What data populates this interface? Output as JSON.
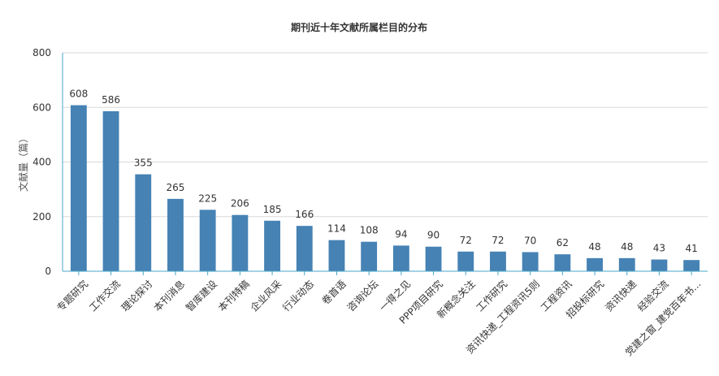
{
  "chart_data": {
    "type": "bar",
    "title": "期刊近十年文献所属栏目的分布",
    "ylabel": "文献量（篇）",
    "xlabel": "",
    "ylim": [
      0,
      800
    ],
    "yticks": [
      0,
      200,
      400,
      600,
      800
    ],
    "grid": true,
    "colors": {
      "bar": "#4682b4",
      "axis": "#4aa6c9",
      "grid": "#d9d9d9"
    },
    "categories": [
      "专题研究",
      "工作交流",
      "理论探讨",
      "本刊消息",
      "智库建设",
      "本刊特稿",
      "企业风采",
      "行业动态",
      "卷首语",
      "咨询论坛",
      "一得之见",
      "PPP项目研究",
      "新概念关注",
      "工作研究",
      "资讯快递_工程资讯5则",
      "工程资讯",
      "招投标研究",
      "资讯快递",
      "经验交流",
      "党建之窗_建党百年书..."
    ],
    "values": [
      608,
      586,
      355,
      265,
      225,
      206,
      185,
      166,
      114,
      108,
      94,
      90,
      72,
      72,
      70,
      62,
      48,
      48,
      43,
      41
    ]
  }
}
